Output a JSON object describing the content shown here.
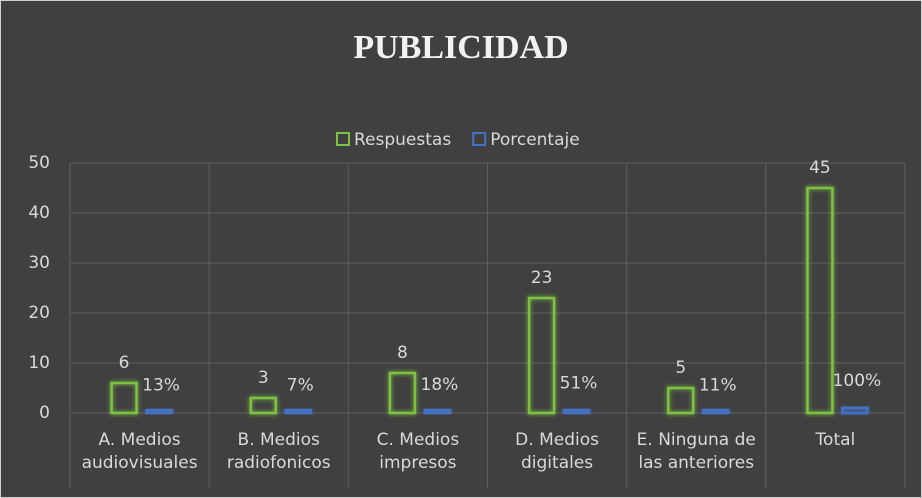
{
  "chart_data": {
    "type": "bar",
    "title": "PUBLICIDAD",
    "categories": [
      "A. Medios audiovisuales",
      "B. Medios radiofonicos",
      "C. Medios impresos",
      "D. Medios digitales",
      "E. Ninguna de las anteriores",
      "Total"
    ],
    "series": [
      {
        "name": "Respuestas",
        "color": "#7dc242",
        "values": [
          6,
          3,
          8,
          23,
          5,
          45
        ]
      },
      {
        "name": "Porcentaje",
        "color": "#4472c4",
        "values": [
          0.13,
          0.07,
          0.18,
          0.51,
          0.11,
          1.0
        ],
        "value_labels": [
          "13%",
          "7%",
          "18%",
          "51%",
          "11%",
          "100%"
        ]
      }
    ],
    "ylim": [
      0,
      50
    ],
    "yticks": [
      0,
      10,
      20,
      30,
      40,
      50
    ],
    "grid": true,
    "legend": "top"
  }
}
